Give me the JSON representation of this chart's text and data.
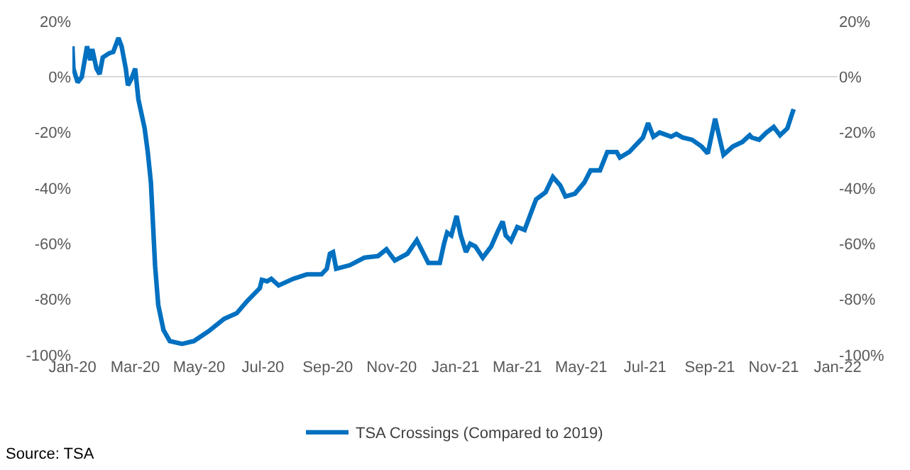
{
  "chart_data": {
    "type": "line",
    "annotations": [
      "Source: TSA"
    ],
    "x": [
      "2020-01-01",
      "2020-01-02",
      "2020-01-06",
      "2020-01-10",
      "2020-01-15",
      "2020-01-18",
      "2020-01-20",
      "2020-01-24",
      "2020-01-27",
      "2020-01-30",
      "2020-02-05",
      "2020-02-09",
      "2020-02-14",
      "2020-02-17",
      "2020-02-21",
      "2020-02-23",
      "2020-02-26",
      "2020-03-01",
      "2020-03-04",
      "2020-03-10",
      "2020-03-13",
      "2020-03-16",
      "2020-03-20",
      "2020-03-23",
      "2020-03-28",
      "2020-04-03",
      "2020-04-15",
      "2020-04-26",
      "2020-05-10",
      "2020-05-25",
      "2020-06-06",
      "2020-06-15",
      "2020-06-28",
      "2020-06-30",
      "2020-07-05",
      "2020-07-09",
      "2020-07-16",
      "2020-07-30",
      "2020-08-12",
      "2020-08-26",
      "2020-08-31",
      "2020-09-03",
      "2020-09-06",
      "2020-09-09",
      "2020-09-22",
      "2020-10-06",
      "2020-10-19",
      "2020-10-27",
      "2020-11-04",
      "2020-11-16",
      "2020-11-25",
      "2020-12-06",
      "2020-12-17",
      "2020-12-21",
      "2020-12-24",
      "2020-12-28",
      "2021-01-02",
      "2021-01-06",
      "2021-01-11",
      "2021-01-15",
      "2021-01-20",
      "2021-01-27",
      "2021-02-04",
      "2021-02-11",
      "2021-02-15",
      "2021-02-18",
      "2021-02-23",
      "2021-03-01",
      "2021-03-08",
      "2021-03-13",
      "2021-03-19",
      "2021-03-28",
      "2021-04-04",
      "2021-04-11",
      "2021-04-16",
      "2021-04-25",
      "2021-05-04",
      "2021-05-10",
      "2021-05-19",
      "2021-05-26",
      "2021-06-04",
      "2021-06-07",
      "2021-06-16",
      "2021-06-25",
      "2021-06-29",
      "2021-07-04",
      "2021-07-09",
      "2021-07-15",
      "2021-07-26",
      "2021-07-31",
      "2021-08-06",
      "2021-08-15",
      "2021-08-24",
      "2021-08-30",
      "2021-09-06",
      "2021-09-09",
      "2021-09-14",
      "2021-09-23",
      "2021-10-02",
      "2021-10-09",
      "2021-10-11",
      "2021-10-18",
      "2021-10-25",
      "2021-11-01",
      "2021-11-07",
      "2021-11-14",
      "2021-11-17",
      "2021-11-20"
    ],
    "series": [
      {
        "name": "TSA Crossings (Compared to 2019)",
        "color": "#0070c0",
        "values": [
          11,
          3,
          -2,
          0,
          11,
          6,
          10,
          3,
          1,
          7,
          8.5,
          9,
          14,
          11,
          3,
          -3,
          -1,
          3,
          -8,
          -18.5,
          -27,
          -38,
          -68,
          -82,
          -91,
          -95,
          -96,
          -95,
          -91.5,
          -87,
          -85,
          -81,
          -76,
          -73,
          -73.5,
          -72.6,
          -75,
          -72.6,
          -71,
          -71,
          -69,
          -63.6,
          -63,
          -69,
          -67.7,
          -65,
          -64.4,
          -62,
          -66,
          -63.6,
          -58.7,
          -66.9,
          -66.9,
          -60,
          -56,
          -57,
          -50,
          -57,
          -63,
          -60,
          -61,
          -65,
          -61,
          -55,
          -52,
          -57,
          -59,
          -54,
          -55,
          -50,
          -44,
          -41.5,
          -36,
          -39,
          -43,
          -42,
          -38,
          -33.6,
          -33.6,
          -27,
          -27,
          -29,
          -27,
          -23.4,
          -21.8,
          -16.6,
          -21.5,
          -20,
          -21.5,
          -20.5,
          -21.8,
          -22.6,
          -25,
          -27.5,
          -15,
          -20,
          -28,
          -25,
          -23.4,
          -21,
          -21.8,
          -22.6,
          -20,
          -18,
          -21,
          -18.5,
          -15,
          -11.6
        ]
      }
    ],
    "xlim": [
      "2020-01-01",
      "2022-01-01"
    ],
    "xticks": [
      {
        "value": "2020-01-01",
        "label": "Jan-20"
      },
      {
        "value": "2020-03-01",
        "label": "Mar-20"
      },
      {
        "value": "2020-05-01",
        "label": "May-20"
      },
      {
        "value": "2020-07-01",
        "label": "Jul-20"
      },
      {
        "value": "2020-09-01",
        "label": "Sep-20"
      },
      {
        "value": "2020-11-01",
        "label": "Nov-20"
      },
      {
        "value": "2021-01-01",
        "label": "Jan-21"
      },
      {
        "value": "2021-03-01",
        "label": "Mar-21"
      },
      {
        "value": "2021-05-01",
        "label": "May-21"
      },
      {
        "value": "2021-07-01",
        "label": "Jul-21"
      },
      {
        "value": "2021-09-01",
        "label": "Sep-21"
      },
      {
        "value": "2021-11-01",
        "label": "Nov-21"
      },
      {
        "value": "2022-01-01",
        "label": "Jan-22"
      }
    ],
    "ylim": [
      -100,
      20
    ],
    "yticks": [
      {
        "value": -100,
        "label": "-100%"
      },
      {
        "value": -80,
        "label": "-80%"
      },
      {
        "value": -60,
        "label": "-60%"
      },
      {
        "value": -40,
        "label": "-40%"
      },
      {
        "value": -20,
        "label": "-20%"
      },
      {
        "value": 0,
        "label": "0%"
      },
      {
        "value": 20,
        "label": "20%"
      }
    ],
    "y2lim": [
      -100,
      20
    ],
    "y2ticks": [
      {
        "value": -100,
        "label": "-100%"
      },
      {
        "value": -80,
        "label": "-80%"
      },
      {
        "value": -60,
        "label": "-60%"
      },
      {
        "value": -40,
        "label": "-40%"
      },
      {
        "value": -20,
        "label": "-20%"
      },
      {
        "value": 0,
        "label": "0%"
      },
      {
        "value": 20,
        "label": "20%"
      }
    ],
    "legend": "bottom",
    "line_style": "solid"
  }
}
